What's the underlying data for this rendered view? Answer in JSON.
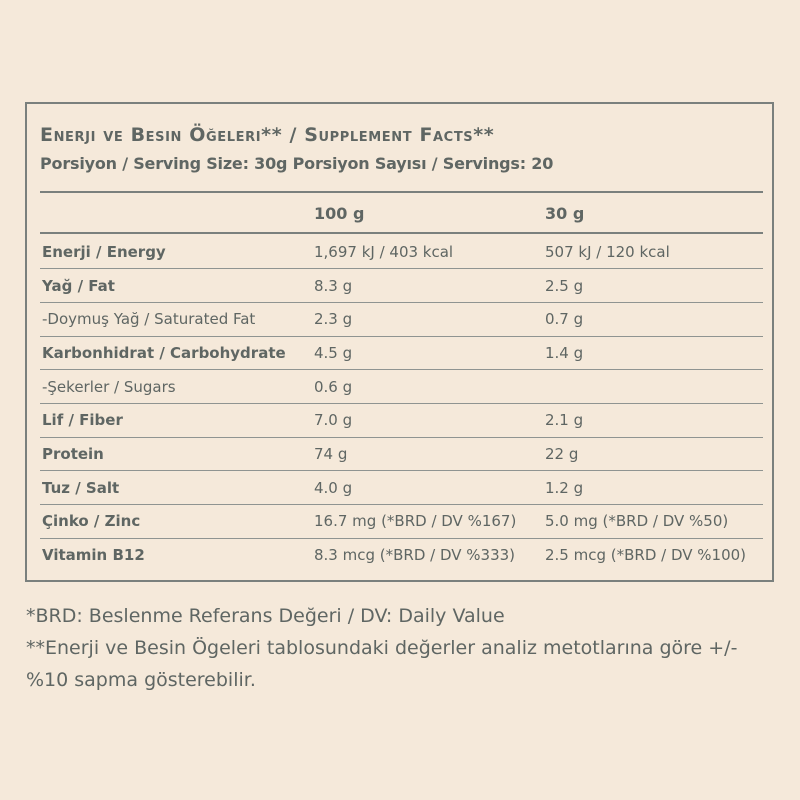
{
  "title": "Enerji ve Besin Öğeleri** / Supplement Facts**",
  "serving_line": "Porsiyon / Serving Size: 30g Porsiyon Sayısı / Servings: 20",
  "columns": [
    "100 g",
    "30 g"
  ],
  "rows": [
    {
      "name": "Enerji / Energy",
      "v100": "1,697 kJ / 403 kcal",
      "v30": "507 kJ / 120 kcal",
      "bold": true
    },
    {
      "name": "Yağ / Fat",
      "v100": "8.3 g",
      "v30": "2.5 g",
      "bold": true
    },
    {
      "name": "-Doymuş Yağ / Saturated Fat",
      "v100": "2.3 g",
      "v30": "0.7 g",
      "bold": false
    },
    {
      "name": "Karbonhidrat / Carbohydrate",
      "v100": "4.5 g",
      "v30": "1.4 g",
      "bold": true
    },
    {
      "name": "-Şekerler / Sugars",
      "v100": "0.6 g",
      "v30": "",
      "bold": false
    },
    {
      "name": "Lif / Fiber",
      "v100": "7.0 g",
      "v30": "2.1 g",
      "bold": true
    },
    {
      "name": "Protein",
      "v100": "74 g",
      "v30": "22  g",
      "bold": true
    },
    {
      "name": "Tuz / Salt",
      "v100": "4.0 g",
      "v30": "1.2 g",
      "bold": true
    },
    {
      "name": "Çinko / Zinc",
      "v100": "16.7 mg (*BRD / DV %167)",
      "v30": "5.0 mg (*BRD / DV %50)",
      "bold": true
    },
    {
      "name": "Vitamin B12",
      "v100": "8.3 mcg (*BRD / DV %333)",
      "v30": "2.5 mcg (*BRD / DV %100)",
      "bold": true
    }
  ],
  "footnotes": [
    "*BRD: Beslenme Referans Değeri / DV: Daily Value",
    "**Enerji ve Besin Ögeleri tablosundaki değerler analiz metotlarına göre +/- %10 sapma gösterebilir."
  ],
  "colors": {
    "background": "#f5e9da",
    "text": "#5f6663",
    "rule": "#7a807d"
  }
}
